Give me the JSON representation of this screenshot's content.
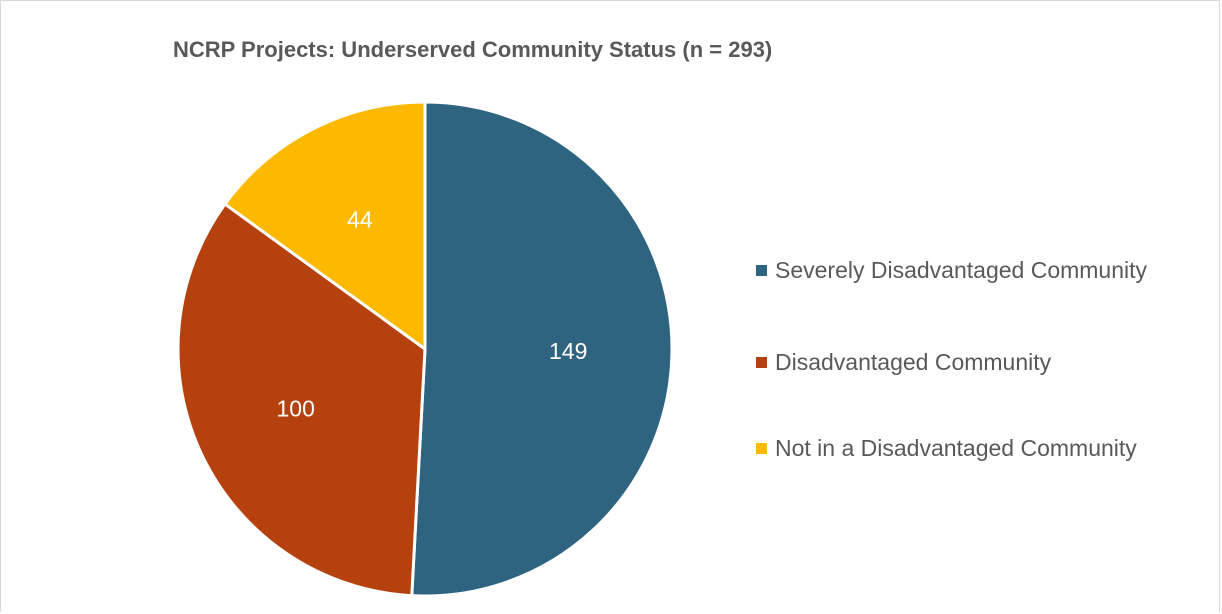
{
  "chart_data": {
    "type": "pie",
    "title": "NCRP Projects: Underserved Community Status (n = 293)",
    "categories": [
      "Severely Disadvantaged Community",
      "Disadvantaged Community",
      "Not in a Disadvantaged Community"
    ],
    "values": [
      149,
      100,
      44
    ],
    "data_labels": [
      "149",
      "100",
      "44"
    ],
    "colors": [
      "#2e6480",
      "#b5420e",
      "#fdb900"
    ],
    "label_color": "#ffffff",
    "legend_placement": "right"
  }
}
